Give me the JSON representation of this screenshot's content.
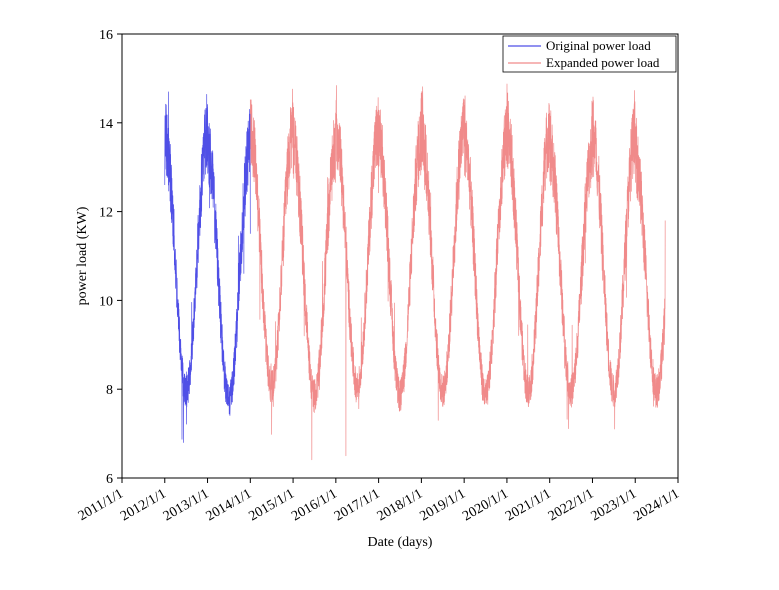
{
  "chart_data": {
    "type": "line",
    "title": "",
    "xlabel": "Date (days)",
    "ylabel": "power load (KW)",
    "ylim": [
      6,
      16
    ],
    "yticks": [
      "6",
      "8",
      "10",
      "12",
      "14",
      "16"
    ],
    "xlim": [
      2011.0,
      2024.0
    ],
    "xticks": [
      "2011/1/1",
      "2012/1/1",
      "2013/1/1",
      "2014/1/1",
      "2015/1/1",
      "2016/1/1",
      "2017/1/1",
      "2018/1/1",
      "2019/1/1",
      "2020/1/1",
      "2021/1/1",
      "2022/1/1",
      "2023/1/1",
      "2024/1/1"
    ],
    "grid": false,
    "legend_position": "top-right",
    "colors": {
      "original": "#4f4fe6",
      "expanded": "#f08a8a"
    },
    "series": [
      {
        "name": "Original power load",
        "color": "#4f4fe6",
        "x_range": [
          2012.0,
          2014.0
        ],
        "peaks": [
          14.8,
          14.5
        ],
        "troughs": [
          7.6,
          7.4
        ],
        "min_spike": 6.8,
        "start_value": 12.6,
        "end_value": 11.5
      },
      {
        "name": "Expanded power load",
        "color": "#f08a8a",
        "x_range": [
          2014.0,
          2023.7
        ],
        "peaks": [
          14.9,
          14.5,
          14.9,
          14.7,
          14.9,
          14.7,
          14.9,
          14.5,
          14.8,
          14.3
        ],
        "troughs": [
          7.7,
          7.5,
          7.7,
          7.5,
          7.6,
          7.5,
          7.6,
          7.6,
          7.6,
          7.6
        ],
        "min_spike": 6.5,
        "end_value": 11.8
      }
    ]
  }
}
